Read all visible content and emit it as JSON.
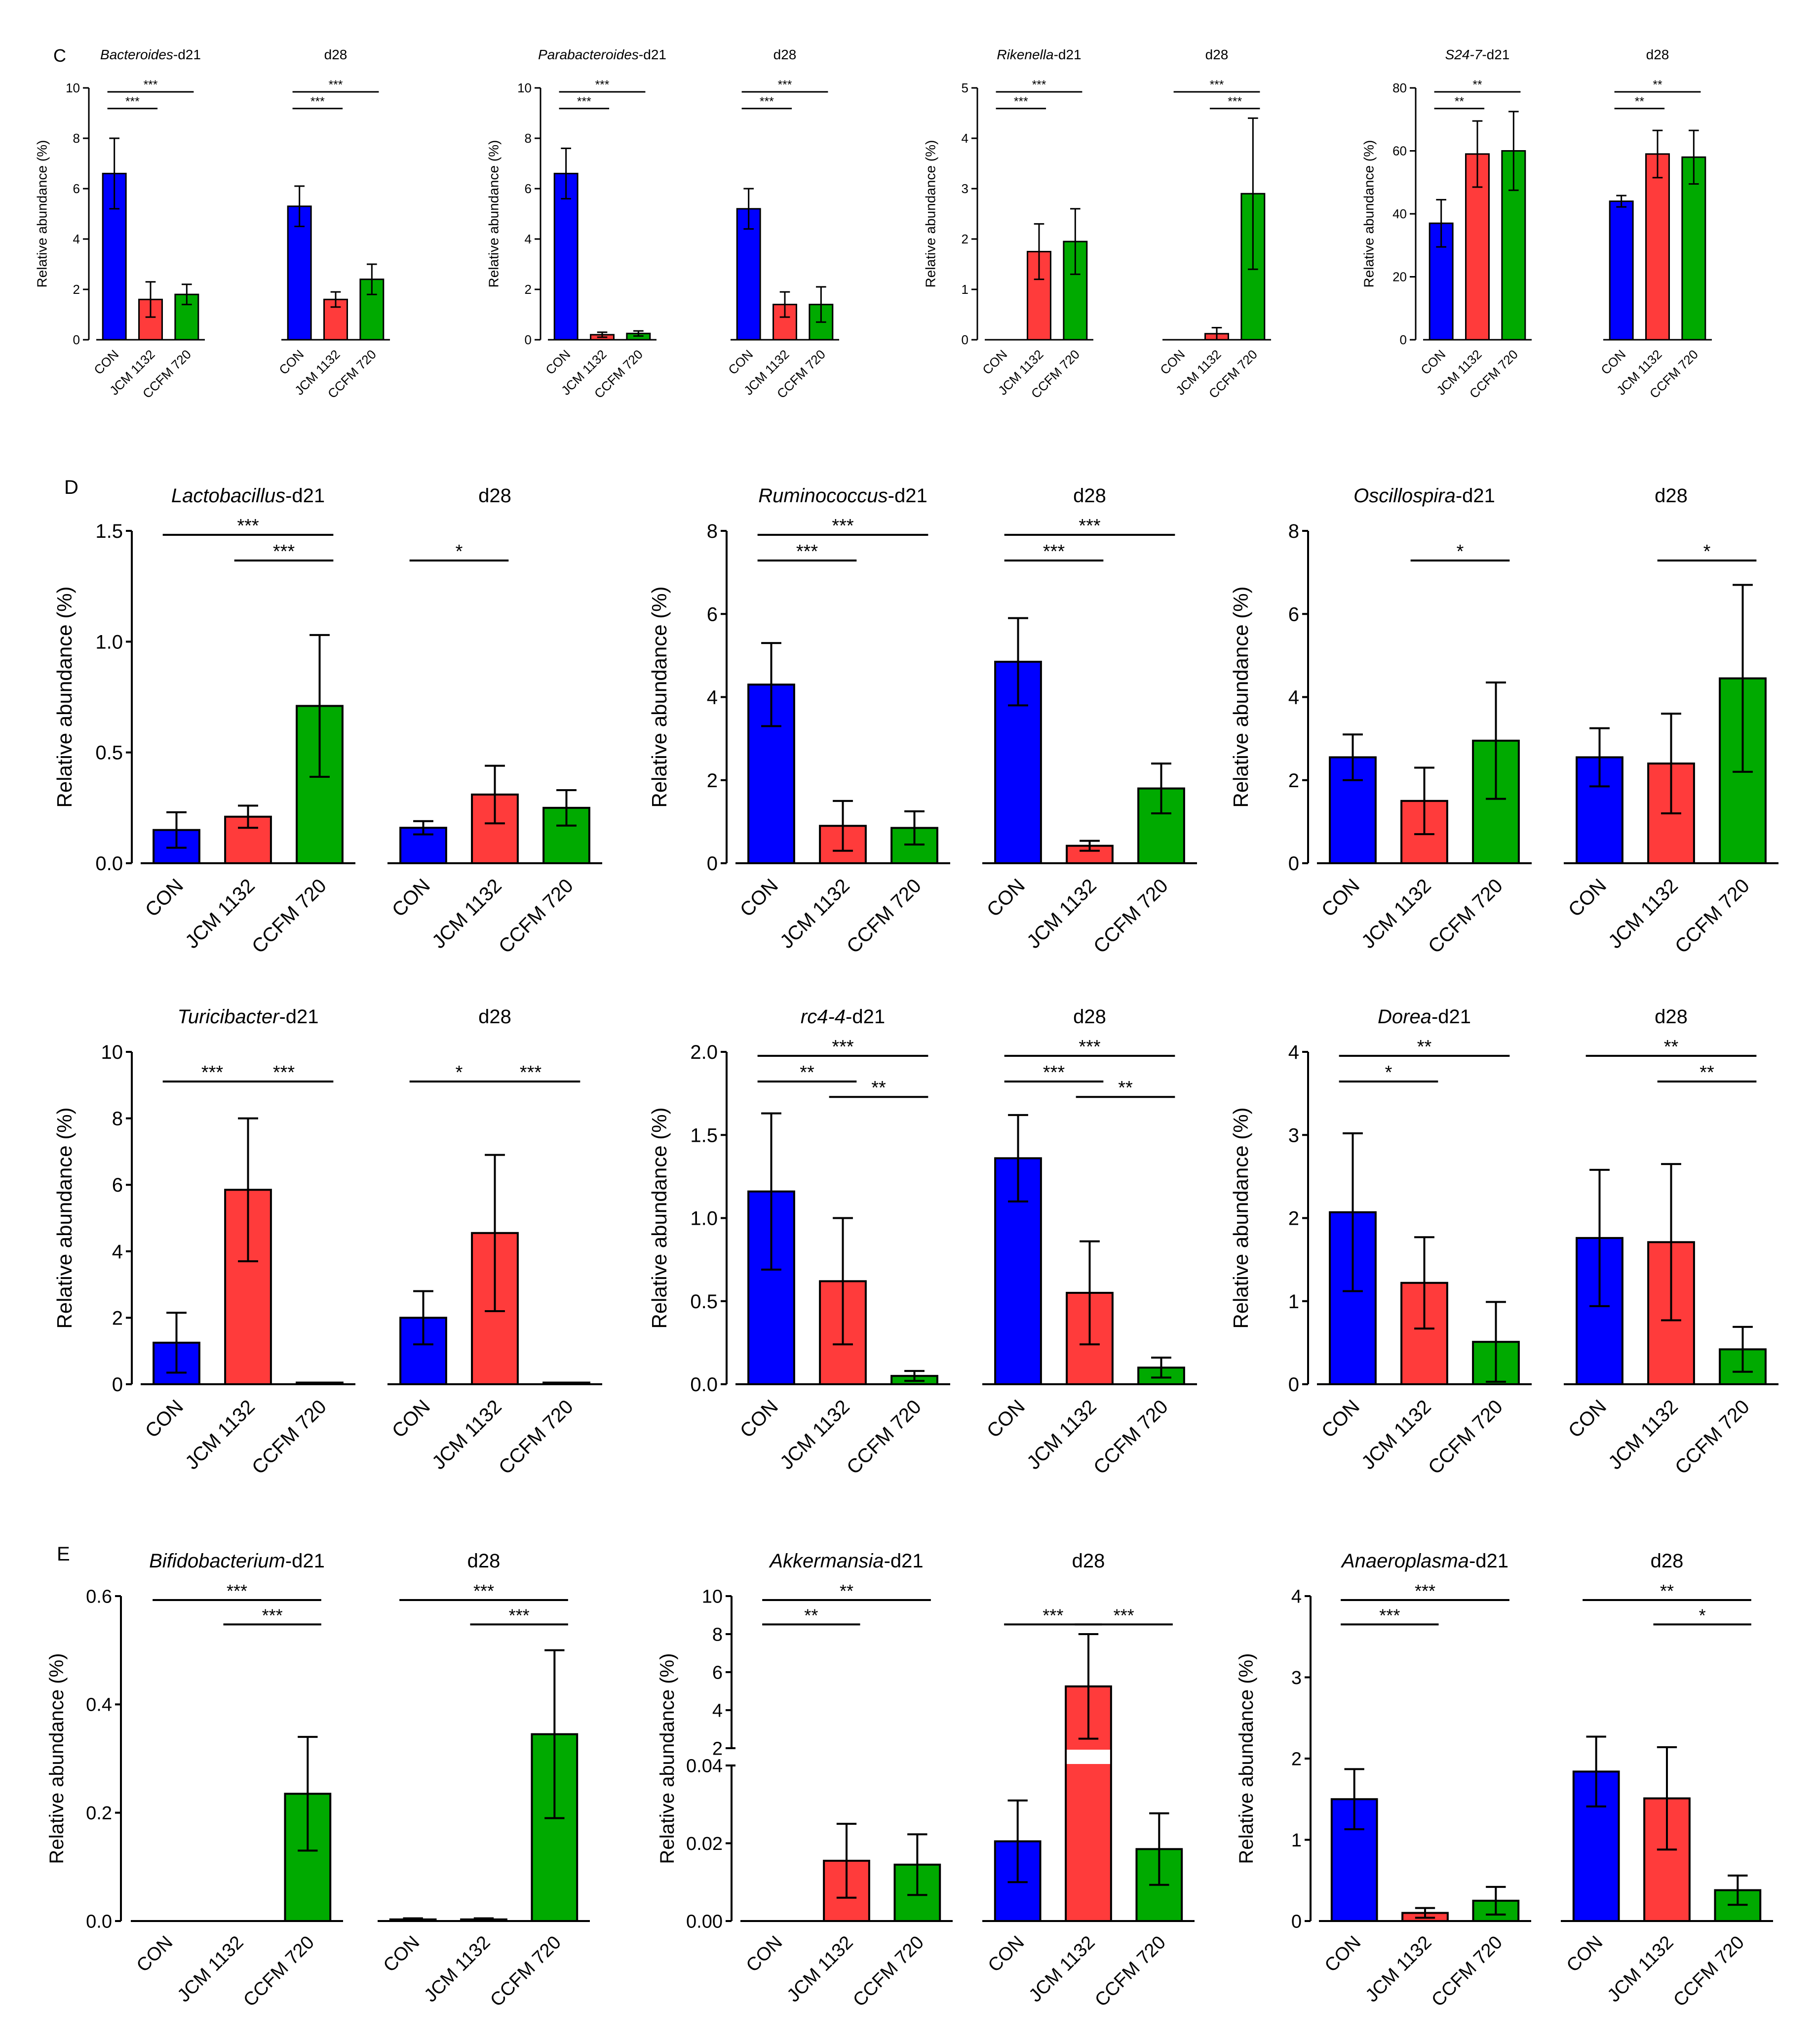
{
  "figure": {
    "groups": [
      "CON",
      "JCM 1132",
      "CCFM 720"
    ],
    "colors": {
      "CON": "#0000ff",
      "JCM 1132": "#ff3b3b",
      "CCFM 720": "#00aa00"
    },
    "ylabel": "Relative abundance (%)"
  },
  "panels": [
    {
      "id": "C",
      "label": "C"
    },
    {
      "id": "D",
      "label": "D"
    },
    {
      "id": "E",
      "label": "E"
    }
  ],
  "chart_data": [
    {
      "type": "bar",
      "panel": "C",
      "genus": "Bacteroides",
      "genus_italic": true,
      "ylabel": "Relative abundance (%)",
      "ylim": [
        0,
        10
      ],
      "yticks": [
        "0",
        "2",
        "4",
        "6",
        "8",
        "10"
      ],
      "ytick_values": [
        0,
        2,
        4,
        6,
        8,
        10
      ],
      "categories": [
        "CON",
        "JCM 1132",
        "CCFM 720"
      ],
      "subplots": [
        {
          "title_italic": "Bacteroides",
          "title_plain": "-d21",
          "values": [
            6.6,
            1.6,
            1.8
          ],
          "errors": [
            1.4,
            0.7,
            0.4
          ],
          "sig": [
            {
              "from": 0,
              "to": 1,
              "label": "***"
            },
            {
              "from": 0,
              "to": 2,
              "label": "***"
            }
          ]
        },
        {
          "title_italic": "",
          "title_plain": "d28",
          "values": [
            5.3,
            1.6,
            2.4
          ],
          "errors": [
            0.8,
            0.3,
            0.6
          ],
          "sig": [
            {
              "from": 0,
              "to": 1,
              "label": "***"
            },
            {
              "from": 0,
              "to": 2,
              "label": "***"
            }
          ]
        }
      ]
    },
    {
      "type": "bar",
      "panel": "C",
      "genus": "Parabacteroides",
      "ylabel": "Relative abundance (%)",
      "ylim": [
        0,
        10
      ],
      "yticks": [
        "0",
        "2",
        "4",
        "6",
        "8",
        "10"
      ],
      "ytick_values": [
        0,
        2,
        4,
        6,
        8,
        10
      ],
      "categories": [
        "CON",
        "JCM 1132",
        "CCFM 720"
      ],
      "subplots": [
        {
          "title_italic": "Parabacteroides",
          "title_plain": "-d21",
          "values": [
            6.6,
            0.2,
            0.25
          ],
          "errors": [
            1.0,
            0.1,
            0.1
          ],
          "sig": [
            {
              "from": 0,
              "to": 1,
              "label": "***"
            },
            {
              "from": 0,
              "to": 2,
              "label": "***"
            }
          ]
        },
        {
          "title_italic": "",
          "title_plain": "d28",
          "values": [
            5.2,
            1.4,
            1.4
          ],
          "errors": [
            0.8,
            0.5,
            0.7
          ],
          "sig": [
            {
              "from": 0,
              "to": 1,
              "label": "***"
            },
            {
              "from": 0,
              "to": 2,
              "label": "***"
            }
          ]
        }
      ]
    },
    {
      "type": "bar",
      "panel": "C",
      "genus": "Rikenella",
      "ylabel": "Relative abundance (%)",
      "ylim": [
        0,
        5
      ],
      "yticks": [
        "0",
        "1",
        "2",
        "3",
        "4",
        "5"
      ],
      "ytick_values": [
        0,
        1,
        2,
        3,
        4,
        5
      ],
      "categories": [
        "CON",
        "JCM 1132",
        "CCFM 720"
      ],
      "subplots": [
        {
          "title_italic": "Rikenella",
          "title_plain": "-d21",
          "values": [
            0.0,
            1.75,
            1.95
          ],
          "errors": [
            0.0,
            0.55,
            0.65
          ],
          "sig": [
            {
              "from": 0,
              "to": 1,
              "label": "***"
            },
            {
              "from": 0,
              "to": 2,
              "label": "***"
            }
          ]
        },
        {
          "title_italic": "",
          "title_plain": "d28",
          "values": [
            0.0,
            0.12,
            2.9
          ],
          "errors": [
            0.0,
            0.12,
            1.5
          ],
          "sig": [
            {
              "from": 0,
              "to": 2,
              "label": "***"
            },
            {
              "from": 1,
              "to": 2,
              "label": "***"
            }
          ]
        }
      ]
    },
    {
      "type": "bar",
      "panel": "C",
      "genus": "S24-7",
      "ylabel": "Relative abundance (%)",
      "ylim": [
        0,
        80
      ],
      "yticks": [
        "0",
        "20",
        "40",
        "60",
        "80"
      ],
      "ytick_values": [
        0,
        20,
        40,
        60,
        80
      ],
      "categories": [
        "CON",
        "JCM 1132",
        "CCFM 720"
      ],
      "subplots": [
        {
          "title_italic": "S24-7",
          "title_plain": "-d21",
          "values": [
            37,
            59,
            60
          ],
          "errors": [
            7.5,
            10.5,
            12.5
          ],
          "sig": [
            {
              "from": 0,
              "to": 1,
              "label": "**"
            },
            {
              "from": 0,
              "to": 2,
              "label": "**"
            }
          ]
        },
        {
          "title_italic": "",
          "title_plain": "d28",
          "values": [
            44,
            59,
            58
          ],
          "errors": [
            1.8,
            7.5,
            8.5
          ],
          "sig": [
            {
              "from": 0,
              "to": 1,
              "label": "**"
            },
            {
              "from": 0,
              "to": 2,
              "label": "**"
            }
          ]
        }
      ]
    },
    {
      "type": "bar",
      "panel": "D",
      "genus": "Lactobacillus",
      "ylabel": "Relative abundance (%)",
      "ylim": [
        0,
        1.5
      ],
      "yticks": [
        "0.0",
        "0.5",
        "1.0",
        "1.5"
      ],
      "ytick_values": [
        0,
        0.5,
        1.0,
        1.5
      ],
      "categories": [
        "CON",
        "JCM 1132",
        "CCFM 720"
      ],
      "subplots": [
        {
          "title_italic": "Lactobacillus",
          "title_plain": "-d21",
          "values": [
            0.15,
            0.21,
            0.71
          ],
          "errors": [
            0.08,
            0.05,
            0.32
          ],
          "sig": [
            {
              "from": 0,
              "to": 2,
              "label": "***"
            },
            {
              "from": 1,
              "to": 2,
              "label": "***"
            }
          ]
        },
        {
          "title_italic": "",
          "title_plain": "d28",
          "values": [
            0.16,
            0.31,
            0.25
          ],
          "errors": [
            0.03,
            0.13,
            0.08
          ],
          "sig": [
            {
              "from": 0,
              "to": 1,
              "label": "*"
            }
          ]
        }
      ]
    },
    {
      "type": "bar",
      "panel": "D",
      "genus": "Ruminococcus",
      "ylabel": "Relative abundance (%)",
      "ylim": [
        0,
        8
      ],
      "yticks": [
        "0",
        "2",
        "4",
        "6",
        "8"
      ],
      "ytick_values": [
        0,
        2,
        4,
        6,
        8
      ],
      "categories": [
        "CON",
        "JCM 1132",
        "CCFM 720"
      ],
      "subplots": [
        {
          "title_italic": "Ruminococcus",
          "title_plain": "-d21",
          "values": [
            4.3,
            0.9,
            0.85
          ],
          "errors": [
            1.0,
            0.6,
            0.4
          ],
          "sig": [
            {
              "from": 0,
              "to": 1,
              "label": "***"
            },
            {
              "from": 0,
              "to": 2,
              "label": "***"
            }
          ]
        },
        {
          "title_italic": "",
          "title_plain": "d28",
          "values": [
            4.85,
            0.42,
            1.8
          ],
          "errors": [
            1.05,
            0.12,
            0.6
          ],
          "sig": [
            {
              "from": 0,
              "to": 1,
              "label": "***"
            },
            {
              "from": 0,
              "to": 2,
              "label": "***"
            }
          ]
        }
      ]
    },
    {
      "type": "bar",
      "panel": "D",
      "genus": "Oscillospira",
      "ylabel": "Relative abundance (%)",
      "ylim": [
        0,
        8
      ],
      "yticks": [
        "0",
        "2",
        "4",
        "6",
        "8"
      ],
      "ytick_values": [
        0,
        2,
        4,
        6,
        8
      ],
      "categories": [
        "CON",
        "JCM 1132",
        "CCFM 720"
      ],
      "subplots": [
        {
          "title_italic": "Oscillospira",
          "title_plain": "-d21",
          "values": [
            2.55,
            1.5,
            2.95
          ],
          "errors": [
            0.55,
            0.8,
            1.4
          ],
          "sig": [
            {
              "from": 1,
              "to": 2,
              "label": "*"
            }
          ]
        },
        {
          "title_italic": "",
          "title_plain": "d28",
          "values": [
            2.55,
            2.4,
            4.45
          ],
          "errors": [
            0.7,
            1.2,
            2.25
          ],
          "sig": [
            {
              "from": 1,
              "to": 2,
              "label": "*"
            }
          ]
        }
      ]
    },
    {
      "type": "bar",
      "panel": "D",
      "genus": "Turicibacter",
      "ylabel": "Relative abundance (%)",
      "ylim": [
        0,
        10
      ],
      "yticks": [
        "0",
        "2",
        "4",
        "6",
        "8",
        "10"
      ],
      "ytick_values": [
        0,
        2,
        4,
        6,
        8,
        10
      ],
      "categories": [
        "CON",
        "JCM 1132",
        "CCFM 720"
      ],
      "subplots": [
        {
          "title_italic": "Turicibacter",
          "title_plain": "-d21",
          "values": [
            1.25,
            5.85,
            0.05
          ],
          "errors": [
            0.9,
            2.15,
            0.0
          ],
          "sig": [
            {
              "from": 0,
              "to": 1,
              "label": "***"
            },
            {
              "from": 1,
              "to": 2,
              "label": "***"
            }
          ]
        },
        {
          "title_italic": "",
          "title_plain": "d28",
          "values": [
            2.0,
            4.55,
            0.05
          ],
          "errors": [
            0.8,
            2.35,
            0.0
          ],
          "sig": [
            {
              "from": 0,
              "to": 1,
              "label": "*"
            },
            {
              "from": 1,
              "to": 2,
              "label": "***"
            }
          ]
        }
      ]
    },
    {
      "type": "bar",
      "panel": "D",
      "genus": "rc4-4",
      "ylabel": "Relative abundance (%)",
      "ylim": [
        0,
        2.0
      ],
      "yticks": [
        "0.0",
        "0.5",
        "1.0",
        "1.5",
        "2.0"
      ],
      "ytick_values": [
        0,
        0.5,
        1.0,
        1.5,
        2.0
      ],
      "categories": [
        "CON",
        "JCM 1132",
        "CCFM 720"
      ],
      "subplots": [
        {
          "title_italic": "rc4-4",
          "title_plain": "-d21",
          "values": [
            1.16,
            0.62,
            0.05
          ],
          "errors": [
            0.47,
            0.38,
            0.03
          ],
          "sig": [
            {
              "from": 0,
              "to": 1,
              "label": "**"
            },
            {
              "from": 0,
              "to": 2,
              "label": "***"
            },
            {
              "from": 1,
              "to": 2,
              "label": "**"
            }
          ]
        },
        {
          "title_italic": "",
          "title_plain": "d28",
          "values": [
            1.36,
            0.55,
            0.1
          ],
          "errors": [
            0.26,
            0.31,
            0.06
          ],
          "sig": [
            {
              "from": 0,
              "to": 1,
              "label": "***"
            },
            {
              "from": 0,
              "to": 2,
              "label": "***"
            },
            {
              "from": 1,
              "to": 2,
              "label": "**"
            }
          ]
        }
      ]
    },
    {
      "type": "bar",
      "panel": "D",
      "genus": "Dorea",
      "ylabel": "Relative abundance (%)",
      "ylim": [
        0,
        4
      ],
      "yticks": [
        "0",
        "1",
        "2",
        "3",
        "4"
      ],
      "ytick_values": [
        0,
        1,
        2,
        3,
        4
      ],
      "categories": [
        "CON",
        "JCM 1132",
        "CCFM 720"
      ],
      "subplots": [
        {
          "title_italic": "Dorea",
          "title_plain": "-d21",
          "values": [
            2.07,
            1.22,
            0.51
          ],
          "errors": [
            0.95,
            0.55,
            0.48
          ],
          "sig": [
            {
              "from": 0,
              "to": 1,
              "label": "*"
            },
            {
              "from": 0,
              "to": 2,
              "label": "**"
            }
          ]
        },
        {
          "title_italic": "",
          "title_plain": "d28",
          "values": [
            1.76,
            1.71,
            0.42
          ],
          "errors": [
            0.82,
            0.94,
            0.27
          ],
          "sig": [
            {
              "from": 0,
              "to": 2,
              "label": "**"
            },
            {
              "from": 1,
              "to": 2,
              "label": "**"
            }
          ]
        }
      ]
    },
    {
      "type": "bar",
      "panel": "E",
      "genus": "Bifidobacterium",
      "ylabel": "Relative abundance (%)",
      "ylim": [
        0,
        0.6
      ],
      "yticks": [
        "0.0",
        "0.2",
        "0.4",
        "0.6"
      ],
      "ytick_values": [
        0,
        0.2,
        0.4,
        0.6
      ],
      "categories": [
        "CON",
        "JCM 1132",
        "CCFM 720"
      ],
      "subplots": [
        {
          "title_italic": "Bifidobacterium",
          "title_plain": "-d21",
          "values": [
            0.0,
            0.0,
            0.235
          ],
          "errors": [
            0.0,
            0.0,
            0.105
          ],
          "sig": [
            {
              "from": 0,
              "to": 2,
              "label": "***"
            },
            {
              "from": 1,
              "to": 2,
              "label": "***"
            }
          ]
        },
        {
          "title_italic": "",
          "title_plain": "d28",
          "values": [
            0.003,
            0.003,
            0.345
          ],
          "errors": [
            0.002,
            0.002,
            0.155
          ],
          "sig": [
            {
              "from": 0,
              "to": 2,
              "label": "***"
            },
            {
              "from": 1,
              "to": 2,
              "label": "***"
            }
          ]
        }
      ]
    },
    {
      "type": "bar",
      "panel": "E",
      "genus": "Akkermansia",
      "broken_axis": true,
      "ylabel": "Relative abundance (%)",
      "ylim": [
        0,
        10
      ],
      "lower_range": [
        0,
        0.04
      ],
      "upper_range": [
        2,
        10
      ],
      "yticks_lower": [
        "0.00",
        "0.02",
        "0.04"
      ],
      "ytick_values_lower": [
        0,
        0.02,
        0.04
      ],
      "yticks_upper": [
        "2",
        "4",
        "6",
        "8",
        "10"
      ],
      "ytick_values_upper": [
        2,
        4,
        6,
        8,
        10
      ],
      "categories": [
        "CON",
        "JCM 1132",
        "CCFM 720"
      ],
      "subplots": [
        {
          "title_italic": "Akkermansia",
          "title_plain": "-d21",
          "values": [
            0.0,
            0.0155,
            0.0145
          ],
          "errors": [
            0.0,
            0.0095,
            0.0078
          ],
          "sig": [
            {
              "from": 0,
              "to": 1,
              "label": "**"
            },
            {
              "from": 0,
              "to": 2,
              "label": "**"
            }
          ]
        },
        {
          "title_italic": "",
          "title_plain": "d28",
          "values": [
            0.0205,
            5.25,
            0.0185
          ],
          "errors": [
            0.0105,
            2.75,
            0.0092
          ],
          "sig": [
            {
              "from": 0,
              "to": 1,
              "label": "***"
            },
            {
              "from": 1,
              "to": 2,
              "label": "***"
            }
          ]
        }
      ]
    },
    {
      "type": "bar",
      "panel": "E",
      "genus": "Anaeroplasma",
      "ylabel": "Relative abundance (%)",
      "ylim": [
        0,
        4
      ],
      "yticks": [
        "0",
        "1",
        "2",
        "3",
        "4"
      ],
      "ytick_values": [
        0,
        1,
        2,
        3,
        4
      ],
      "categories": [
        "CON",
        "JCM 1132",
        "CCFM 720"
      ],
      "subplots": [
        {
          "title_italic": "Anaeroplasma",
          "title_plain": "-d21",
          "values": [
            1.5,
            0.1,
            0.25
          ],
          "errors": [
            0.37,
            0.06,
            0.17
          ],
          "sig": [
            {
              "from": 0,
              "to": 1,
              "label": "***"
            },
            {
              "from": 0,
              "to": 2,
              "label": "***"
            }
          ]
        },
        {
          "title_italic": "",
          "title_plain": "d28",
          "values": [
            1.84,
            1.51,
            0.38
          ],
          "errors": [
            0.43,
            0.63,
            0.18
          ],
          "sig": [
            {
              "from": 0,
              "to": 2,
              "label": "**"
            },
            {
              "from": 1,
              "to": 2,
              "label": "*"
            }
          ]
        }
      ]
    }
  ]
}
